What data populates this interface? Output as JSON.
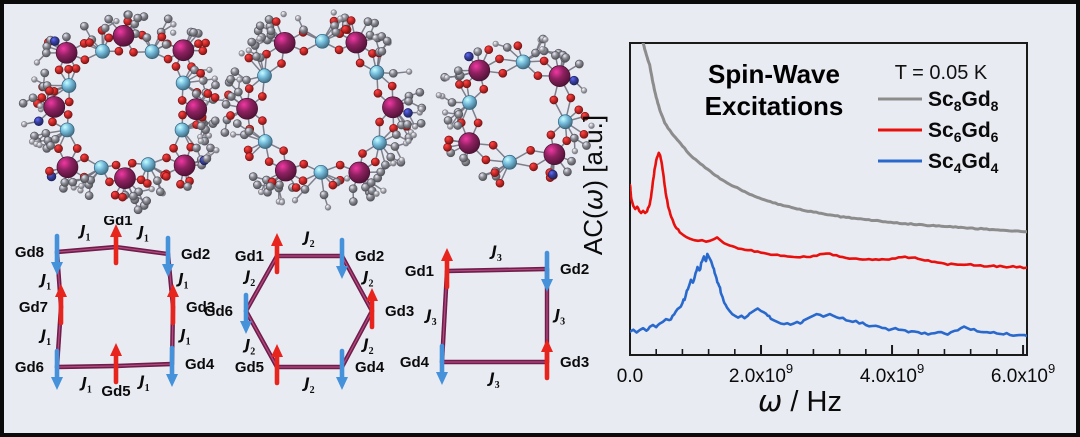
{
  "figure": {
    "background": "#e9ebf3",
    "border_color": "#0b0b0b"
  },
  "molecular_structures": {
    "atom_colors": {
      "Gd": "#8e2160",
      "Sc": "#74bbdc",
      "O": "#cf2a2a",
      "C": "#8b8b93",
      "N": "#383f9f",
      "H": "#b3b3bc",
      "bond": "#73737f"
    },
    "items": [
      {
        "name": "Sc8Gd8",
        "large_metals": 8,
        "small_metals": 8,
        "ring_shape": "square",
        "seed": 7
      },
      {
        "name": "Sc6Gd6",
        "large_metals": 6,
        "small_metals": 6,
        "ring_shape": "hexagon",
        "seed": 13
      },
      {
        "name": "Sc4Gd4",
        "large_metals": 4,
        "small_metals": 4,
        "ring_shape": "small-square",
        "seed": 21
      }
    ]
  },
  "spin_diagrams": {
    "colors": {
      "bond": "#6f1d4b",
      "bond_core": "#b2497f",
      "spin_up": "#e8251d",
      "spin_down": "#4591da",
      "label": "#0a0a0a"
    },
    "items": [
      {
        "shape": "octagon",
        "coupling_label": "J",
        "coupling_sub": "1",
        "sites": [
          {
            "label": "Gd1",
            "spin": "up"
          },
          {
            "label": "Gd2",
            "spin": "down"
          },
          {
            "label": "Gd3",
            "spin": "up"
          },
          {
            "label": "Gd4",
            "spin": "down"
          },
          {
            "label": "Gd5",
            "spin": "up"
          },
          {
            "label": "Gd6",
            "spin": "down"
          },
          {
            "label": "Gd7",
            "spin": "up"
          },
          {
            "label": "Gd8",
            "spin": "down"
          }
        ]
      },
      {
        "shape": "hexagon",
        "coupling_label": "J",
        "coupling_sub": "2",
        "sites": [
          {
            "label": "Gd1",
            "spin": "up"
          },
          {
            "label": "Gd2",
            "spin": "down"
          },
          {
            "label": "Gd3",
            "spin": "up"
          },
          {
            "label": "Gd4",
            "spin": "down"
          },
          {
            "label": "Gd5",
            "spin": "up"
          },
          {
            "label": "Gd6",
            "spin": "down"
          }
        ]
      },
      {
        "shape": "square",
        "coupling_label": "J",
        "coupling_sub": "3",
        "sites": [
          {
            "label": "Gd1",
            "spin": "up"
          },
          {
            "label": "Gd2",
            "spin": "down"
          },
          {
            "label": "Gd3",
            "spin": "up"
          },
          {
            "label": "Gd4",
            "spin": "down"
          }
        ]
      }
    ]
  },
  "chart": {
    "title_lines": [
      "Spin-Wave",
      "Excitations"
    ],
    "condition": "T = 0.05 K",
    "ylabel_parts": [
      {
        "t": "AC("
      },
      {
        "t": "ω",
        "i": true
      },
      {
        "t": ") [a.u.]"
      }
    ],
    "xlabel_parts": [
      {
        "t": "ω",
        "i": true
      },
      {
        "t": " / Hz"
      }
    ],
    "x_tick_values": [
      0,
      2,
      4,
      6
    ],
    "x_tick_labels": [
      {
        "main": "0.0",
        "exp": ""
      },
      {
        "main": "2.0x10",
        "exp": "9"
      },
      {
        "main": "4.0x10",
        "exp": "9"
      },
      {
        "main": "6.0x10",
        "exp": "9"
      }
    ],
    "legend": [
      {
        "formula": [
          [
            "Sc",
            false
          ],
          [
            "8",
            true
          ],
          [
            "Gd",
            false
          ],
          [
            "8",
            true
          ]
        ],
        "color": "#8c8c8c"
      },
      {
        "formula": [
          [
            "Sc",
            false
          ],
          [
            "6",
            true
          ],
          [
            "Gd",
            false
          ],
          [
            "6",
            true
          ]
        ],
        "color": "#e8100d"
      },
      {
        "formula": [
          [
            "Sc",
            false
          ],
          [
            "4",
            true
          ],
          [
            "Gd",
            false
          ],
          [
            "4",
            true
          ]
        ],
        "color": "#2a69cc"
      }
    ]
  },
  "chart_data": {
    "type": "line",
    "title": "Spin-Wave Excitations",
    "xlabel": "ω / Hz",
    "ylabel": "AC(ω) [a.u.]",
    "temperature": "T = 0.05 K",
    "x_unit_multiplier": 1000000000.0,
    "xlim": [
      0,
      6.06
    ],
    "ylim": [
      0,
      1
    ],
    "grid": false,
    "legend_position": "top-right",
    "y_note": "arbitrary units; y given as fraction of plot height, curves vertically offset",
    "series": [
      {
        "name": "Sc8Gd8",
        "color": "#8c8c8c",
        "points": [
          [
            0.2,
            1.0
          ],
          [
            0.25,
            0.962
          ],
          [
            0.3,
            0.93
          ],
          [
            0.35,
            0.873
          ],
          [
            0.4,
            0.826
          ],
          [
            0.46,
            0.782
          ],
          [
            0.53,
            0.744
          ],
          [
            0.58,
            0.727
          ],
          [
            0.64,
            0.71
          ],
          [
            0.72,
            0.69
          ],
          [
            0.8,
            0.67
          ],
          [
            0.9,
            0.645
          ],
          [
            1.0,
            0.627
          ],
          [
            1.15,
            0.6
          ],
          [
            1.3,
            0.576
          ],
          [
            1.45,
            0.556
          ],
          [
            1.6,
            0.539
          ],
          [
            1.75,
            0.524
          ],
          [
            1.9,
            0.509
          ],
          [
            2.1,
            0.494
          ],
          [
            2.3,
            0.482
          ],
          [
            2.55,
            0.468
          ],
          [
            2.8,
            0.458
          ],
          [
            3.05,
            0.449
          ],
          [
            3.3,
            0.441
          ],
          [
            3.6,
            0.434
          ],
          [
            3.9,
            0.427
          ],
          [
            4.2,
            0.421
          ],
          [
            4.5,
            0.416
          ],
          [
            4.8,
            0.412
          ],
          [
            5.1,
            0.408
          ],
          [
            5.4,
            0.404
          ],
          [
            5.7,
            0.4
          ],
          [
            6.06,
            0.395
          ]
        ]
      },
      {
        "name": "Sc6Gd6",
        "color": "#e8100d",
        "points": [
          [
            0.0,
            0.545
          ],
          [
            0.02,
            0.5
          ],
          [
            0.05,
            0.478
          ],
          [
            0.08,
            0.468
          ],
          [
            0.11,
            0.475
          ],
          [
            0.14,
            0.462
          ],
          [
            0.17,
            0.455
          ],
          [
            0.2,
            0.462
          ],
          [
            0.23,
            0.455
          ],
          [
            0.26,
            0.46
          ],
          [
            0.29,
            0.476
          ],
          [
            0.32,
            0.505
          ],
          [
            0.35,
            0.556
          ],
          [
            0.38,
            0.6
          ],
          [
            0.41,
            0.632
          ],
          [
            0.44,
            0.648
          ],
          [
            0.46,
            0.64
          ],
          [
            0.49,
            0.607
          ],
          [
            0.52,
            0.558
          ],
          [
            0.55,
            0.513
          ],
          [
            0.59,
            0.47
          ],
          [
            0.63,
            0.442
          ],
          [
            0.67,
            0.421
          ],
          [
            0.71,
            0.406
          ],
          [
            0.76,
            0.393
          ],
          [
            0.81,
            0.385
          ],
          [
            0.86,
            0.378
          ],
          [
            0.92,
            0.372
          ],
          [
            0.98,
            0.368
          ],
          [
            1.04,
            0.366
          ],
          [
            1.1,
            0.368
          ],
          [
            1.16,
            0.363
          ],
          [
            1.22,
            0.366
          ],
          [
            1.28,
            0.371
          ],
          [
            1.33,
            0.377
          ],
          [
            1.38,
            0.368
          ],
          [
            1.44,
            0.358
          ],
          [
            1.52,
            0.351
          ],
          [
            1.6,
            0.346
          ],
          [
            1.7,
            0.34
          ],
          [
            1.8,
            0.336
          ],
          [
            1.9,
            0.331
          ],
          [
            2.0,
            0.328
          ],
          [
            2.1,
            0.324
          ],
          [
            2.2,
            0.321
          ],
          [
            2.3,
            0.318
          ],
          [
            2.4,
            0.316
          ],
          [
            2.5,
            0.314
          ],
          [
            2.6,
            0.313
          ],
          [
            2.7,
            0.314
          ],
          [
            2.8,
            0.318
          ],
          [
            2.9,
            0.323
          ],
          [
            3.0,
            0.325
          ],
          [
            3.1,
            0.32
          ],
          [
            3.2,
            0.315
          ],
          [
            3.3,
            0.311
          ],
          [
            3.4,
            0.309
          ],
          [
            3.5,
            0.307
          ],
          [
            3.6,
            0.306
          ],
          [
            3.7,
            0.305
          ],
          [
            3.8,
            0.305
          ],
          [
            3.9,
            0.306
          ],
          [
            4.0,
            0.309
          ],
          [
            4.1,
            0.313
          ],
          [
            4.2,
            0.315
          ],
          [
            4.3,
            0.312
          ],
          [
            4.4,
            0.308
          ],
          [
            4.5,
            0.303
          ],
          [
            4.6,
            0.299
          ],
          [
            4.7,
            0.296
          ],
          [
            4.8,
            0.293
          ],
          [
            4.95,
            0.291
          ],
          [
            5.1,
            0.289
          ],
          [
            5.3,
            0.287
          ],
          [
            5.5,
            0.285
          ],
          [
            5.7,
            0.283
          ],
          [
            5.9,
            0.281
          ],
          [
            6.06,
            0.28
          ]
        ]
      },
      {
        "name": "Sc4Gd4",
        "color": "#2a69cc",
        "points": [
          [
            0.0,
            0.075
          ],
          [
            0.05,
            0.081
          ],
          [
            0.1,
            0.072
          ],
          [
            0.15,
            0.08
          ],
          [
            0.2,
            0.086
          ],
          [
            0.25,
            0.078
          ],
          [
            0.3,
            0.09
          ],
          [
            0.35,
            0.096
          ],
          [
            0.4,
            0.089
          ],
          [
            0.45,
            0.1
          ],
          [
            0.5,
            0.106
          ],
          [
            0.55,
            0.115
          ],
          [
            0.6,
            0.112
          ],
          [
            0.65,
            0.126
          ],
          [
            0.7,
            0.14
          ],
          [
            0.75,
            0.151
          ],
          [
            0.8,
            0.166
          ],
          [
            0.85,
            0.19
          ],
          [
            0.9,
            0.221
          ],
          [
            0.93,
            0.241
          ],
          [
            0.96,
            0.232
          ],
          [
            1.0,
            0.262
          ],
          [
            1.03,
            0.282
          ],
          [
            1.06,
            0.271
          ],
          [
            1.1,
            0.3
          ],
          [
            1.13,
            0.316
          ],
          [
            1.16,
            0.301
          ],
          [
            1.18,
            0.324
          ],
          [
            1.21,
            0.312
          ],
          [
            1.24,
            0.3
          ],
          [
            1.28,
            0.276
          ],
          [
            1.32,
            0.246
          ],
          [
            1.36,
            0.221
          ],
          [
            1.4,
            0.192
          ],
          [
            1.44,
            0.167
          ],
          [
            1.48,
            0.152
          ],
          [
            1.52,
            0.141
          ],
          [
            1.56,
            0.131
          ],
          [
            1.6,
            0.126
          ],
          [
            1.65,
            0.12
          ],
          [
            1.7,
            0.126
          ],
          [
            1.75,
            0.118
          ],
          [
            1.8,
            0.126
          ],
          [
            1.85,
            0.136
          ],
          [
            1.9,
            0.143
          ],
          [
            1.95,
            0.149
          ],
          [
            2.0,
            0.141
          ],
          [
            2.05,
            0.136
          ],
          [
            2.1,
            0.126
          ],
          [
            2.15,
            0.116
          ],
          [
            2.2,
            0.111
          ],
          [
            2.25,
            0.106
          ],
          [
            2.3,
            0.101
          ],
          [
            2.35,
            0.099
          ],
          [
            2.4,
            0.102
          ],
          [
            2.45,
            0.097
          ],
          [
            2.5,
            0.101
          ],
          [
            2.55,
            0.106
          ],
          [
            2.6,
            0.101
          ],
          [
            2.65,
            0.111
          ],
          [
            2.7,
            0.116
          ],
          [
            2.75,
            0.121
          ],
          [
            2.8,
            0.126
          ],
          [
            2.85,
            0.131
          ],
          [
            2.9,
            0.129
          ],
          [
            2.95,
            0.123
          ],
          [
            3.0,
            0.127
          ],
          [
            3.05,
            0.131
          ],
          [
            3.1,
            0.126
          ],
          [
            3.15,
            0.121
          ],
          [
            3.2,
            0.118
          ],
          [
            3.3,
            0.111
          ],
          [
            3.4,
            0.106
          ],
          [
            3.5,
            0.101
          ],
          [
            3.6,
            0.096
          ],
          [
            3.7,
            0.093
          ],
          [
            3.8,
            0.091
          ],
          [
            3.9,
            0.086
          ],
          [
            4.0,
            0.083
          ],
          [
            4.1,
            0.081
          ],
          [
            4.2,
            0.079
          ],
          [
            4.3,
            0.076
          ],
          [
            4.4,
            0.073
          ],
          [
            4.5,
            0.071
          ],
          [
            4.6,
            0.069
          ],
          [
            4.7,
            0.073
          ],
          [
            4.8,
            0.069
          ],
          [
            4.9,
            0.073
          ],
          [
            5.0,
            0.079
          ],
          [
            5.05,
            0.086
          ],
          [
            5.1,
            0.091
          ],
          [
            5.15,
            0.086
          ],
          [
            5.2,
            0.081
          ],
          [
            5.3,
            0.076
          ],
          [
            5.4,
            0.073
          ],
          [
            5.5,
            0.071
          ],
          [
            5.6,
            0.069
          ],
          [
            5.7,
            0.066
          ],
          [
            5.8,
            0.064
          ],
          [
            5.9,
            0.063
          ],
          [
            6.06,
            0.061
          ]
        ]
      }
    ]
  }
}
